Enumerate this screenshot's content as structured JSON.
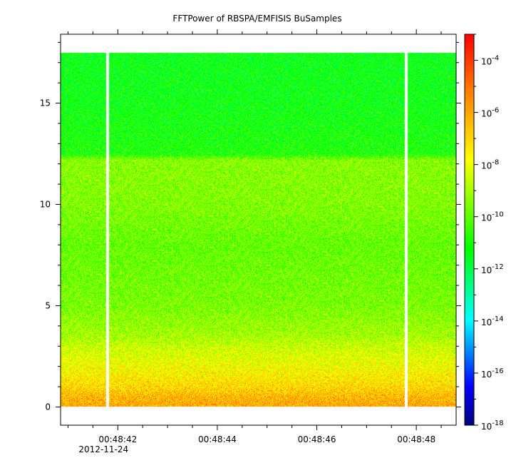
{
  "chart_data": {
    "type": "heatmap",
    "title": "FFTPower of RBSPA/EMFISIS  BuSamples",
    "xlabel": "",
    "ylabel": "",
    "x_ticks": [
      {
        "value": 1.0,
        "label": "00:48:42",
        "sublabel": "2012-11-24"
      },
      {
        "value": 3.0,
        "label": "00:48:44",
        "sublabel": ""
      },
      {
        "value": 5.0,
        "label": "00:48:46",
        "sublabel": ""
      },
      {
        "value": 7.0,
        "label": "00:48:48",
        "sublabel": ""
      }
    ],
    "xlim_seconds_after_00_48_41": [
      -0.15,
      7.8
    ],
    "ylim": [
      -0.9,
      18.4
    ],
    "y_ticks": [
      0,
      5,
      10,
      15
    ],
    "data_ylim": [
      0,
      17.5
    ],
    "data_gaps_seconds_after_00_48_41": [
      0.8,
      6.8
    ],
    "colorbar": {
      "scale": "log",
      "range": [
        1e-18,
        0.001
      ],
      "ticks": [
        {
          "value": -18,
          "label": "10",
          "exp": "-18"
        },
        {
          "value": -16,
          "label": "10",
          "exp": "-16"
        },
        {
          "value": -14,
          "label": "10",
          "exp": "-14"
        },
        {
          "value": -12,
          "label": "10",
          "exp": "-12"
        },
        {
          "value": -10,
          "label": "10",
          "exp": "-10"
        },
        {
          "value": -8,
          "label": "10",
          "exp": "-8"
        },
        {
          "value": -6,
          "label": "10",
          "exp": "-6"
        },
        {
          "value": -4,
          "label": "10",
          "exp": "-4"
        }
      ]
    },
    "spectrum_profile_log10_power": [
      {
        "y": 0.0,
        "v": -6.0
      },
      {
        "y": 0.5,
        "v": -6.3
      },
      {
        "y": 1.0,
        "v": -7.0
      },
      {
        "y": 2.0,
        "v": -7.8
      },
      {
        "y": 3.0,
        "v": -8.5
      },
      {
        "y": 3.5,
        "v": -9.0
      },
      {
        "y": 5.0,
        "v": -9.6
      },
      {
        "y": 8.0,
        "v": -9.9
      },
      {
        "y": 10.0,
        "v": -9.5
      },
      {
        "y": 12.2,
        "v": -9.4
      },
      {
        "y": 12.5,
        "v": -10.9
      },
      {
        "y": 15.0,
        "v": -11.2
      },
      {
        "y": 17.5,
        "v": -11.3
      }
    ],
    "colors": {
      "background": "#ffffff",
      "gap": "#ffffff",
      "axis": "#000000"
    }
  }
}
